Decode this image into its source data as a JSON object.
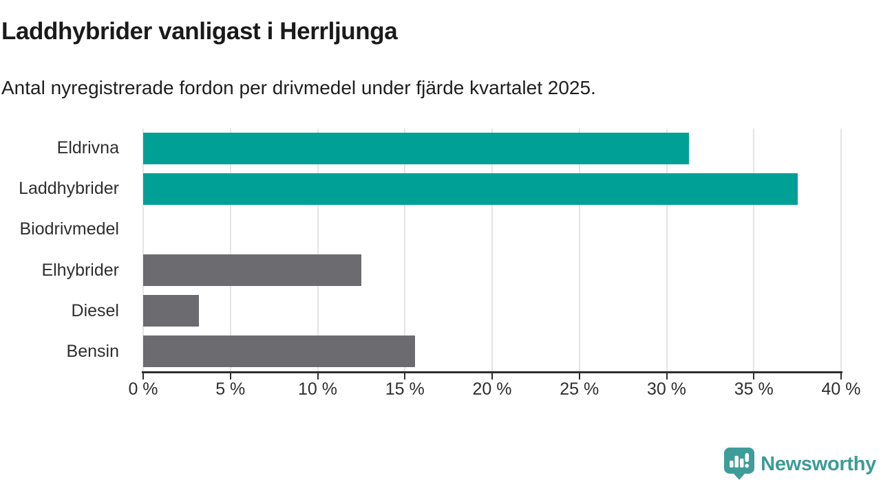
{
  "header": {
    "title": "Laddhybrider vanligast i Herrljunga",
    "subtitle": "Antal nyregistrerade fordon per drivmedel under fjärde kvartalet 2025."
  },
  "chart_data": {
    "type": "bar",
    "orientation": "horizontal",
    "title": "Laddhybrider vanligast i Herrljunga",
    "subtitle": "Antal nyregistrerade fordon per drivmedel under fjärde kvartalet 2025.",
    "categories": [
      "Eldrivna",
      "Laddhybrider",
      "Biodrivmedel",
      "Elhybrider",
      "Diesel",
      "Bensin"
    ],
    "values": [
      31.3,
      37.5,
      0,
      12.5,
      3.2,
      15.6
    ],
    "unit": "%",
    "bar_colors": [
      "#00a096",
      "#00a096",
      "#6c6c70",
      "#6c6c70",
      "#6c6c70",
      "#6c6c70"
    ],
    "xlabel": "",
    "ylabel": "",
    "xlim": [
      0,
      40
    ],
    "x_ticks": [
      0,
      5,
      10,
      15,
      20,
      25,
      30,
      35,
      40
    ],
    "x_tick_labels": [
      "0 %",
      "5 %",
      "10 %",
      "15 %",
      "20 %",
      "25 %",
      "30 %",
      "35 %",
      "40 %"
    ],
    "grid": "vertical",
    "legend": "none"
  },
  "branding": {
    "name": "Newsworthy",
    "icon": "newsworthy-speech-bubble-barchart-icon",
    "icon_color": "#3f9d99",
    "text_color": "#3d9b96"
  },
  "colors": {
    "accent_teal": "#00a096",
    "neutral_gray": "#6c6c70",
    "axis": "#2e2e2e",
    "gridline": "#e4e4e4",
    "text": "#1a1a1a",
    "background": "#ffffff"
  }
}
